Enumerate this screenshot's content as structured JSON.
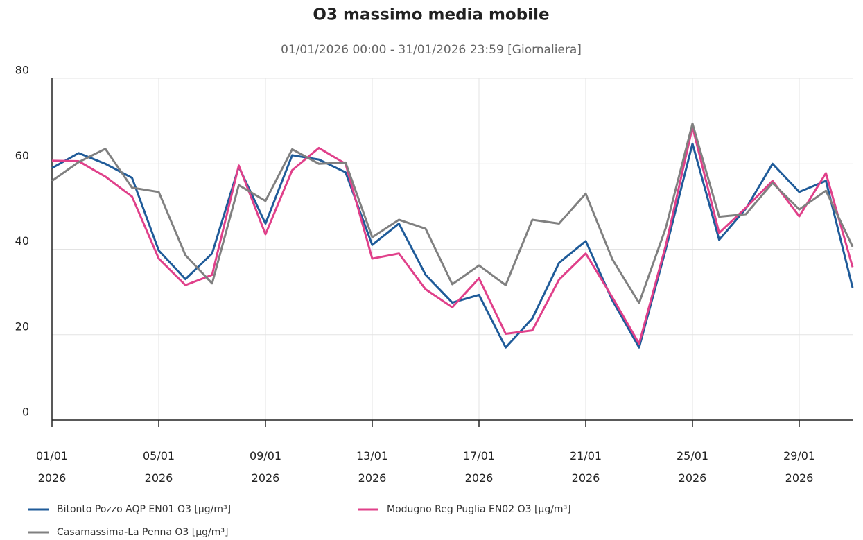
{
  "chart_data": {
    "type": "line",
    "title": "O3 massimo media mobile",
    "subtitle": "01/01/2026 00:00 - 31/01/2026 23:59 [Giornaliera]",
    "categories": [
      "01/01\n2026",
      null,
      null,
      null,
      "05/01\n2026",
      null,
      null,
      null,
      "09/01\n2026",
      null,
      null,
      null,
      "13/01\n2026",
      null,
      null,
      null,
      "17/01\n2026",
      null,
      null,
      null,
      "21/01\n2026",
      null,
      null,
      null,
      "25/01\n2026",
      null,
      null,
      null,
      "29/01\n2026",
      null,
      null
    ],
    "ylim": [
      0,
      80
    ],
    "yticks": [
      0,
      20,
      40,
      60,
      80
    ],
    "grid": true,
    "series": [
      {
        "name": "Bitonto Pozzo AQP EN01 O3 [µg/m³]",
        "color": "#1f5b99",
        "values": [
          59,
          62.5,
          60,
          56.7,
          39.7,
          33,
          39,
          59.3,
          46,
          62,
          61,
          58,
          41,
          46,
          34,
          27.5,
          29.3,
          17,
          23.8,
          36.8,
          41.9,
          28,
          17,
          40,
          64.7,
          42.2,
          49.5,
          60,
          53.4,
          56,
          31
        ]
      },
      {
        "name": "Modugno Reg Puglia EN02 O3 [µg/m³]",
        "color": "#e0408a",
        "values": [
          60.7,
          60.6,
          57,
          52.3,
          37.8,
          31.6,
          34,
          59.6,
          43.5,
          58.5,
          63.7,
          60,
          37.8,
          39,
          30.6,
          26.4,
          33.2,
          20.2,
          21,
          32.9,
          39,
          28.7,
          17.9,
          40.9,
          68.6,
          43.8,
          49.7,
          56,
          47.7,
          57.8,
          35.8
        ]
      },
      {
        "name": "Casamassima-La Penna O3 [µg/m³]",
        "color": "#808080",
        "values": [
          56,
          60.4,
          63.5,
          54.4,
          53.4,
          38.6,
          32,
          55,
          51.3,
          63.4,
          60,
          60.3,
          42.8,
          46.9,
          44.8,
          31.8,
          36.2,
          31.6,
          46.9,
          46,
          53,
          37.6,
          27.4,
          45,
          69.4,
          47.6,
          48.2,
          55.5,
          49.3,
          53.7,
          40.6
        ]
      }
    ]
  }
}
